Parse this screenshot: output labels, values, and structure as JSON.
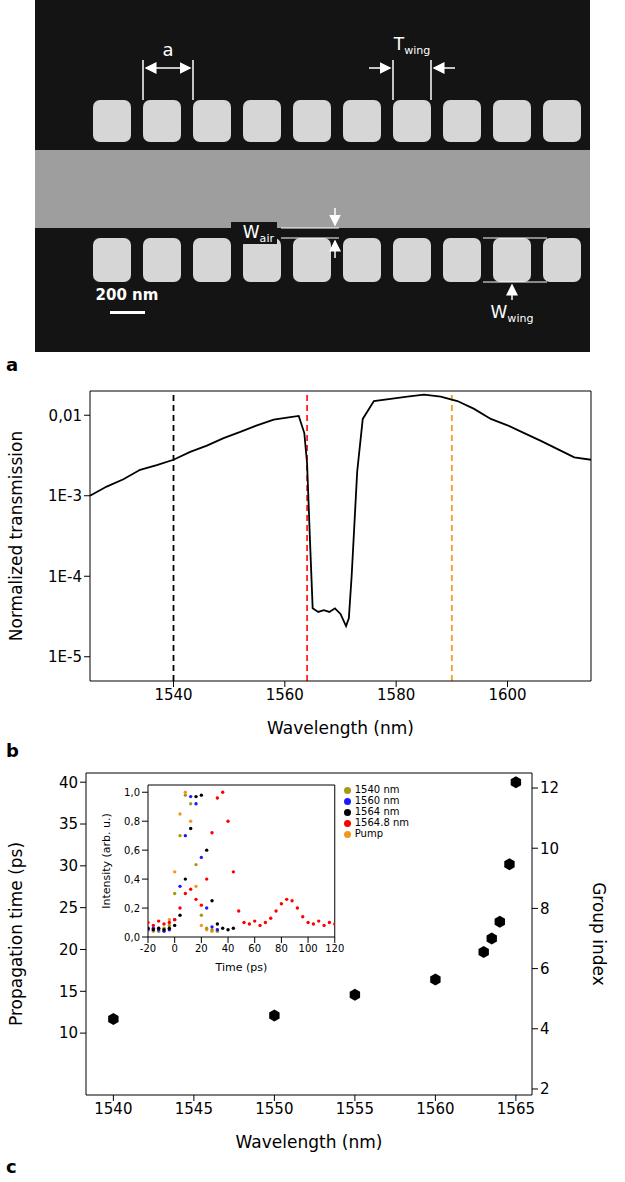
{
  "panel_a": {
    "label": "a",
    "dimensions": [
      {
        "symbol": "a"
      },
      {
        "symbol": "T",
        "subscript": "wing"
      },
      {
        "symbol": "W",
        "subscript": "air"
      },
      {
        "symbol": "W",
        "subscript": "wing"
      }
    ],
    "scale_bar": "200 nm"
  },
  "chart_data": [
    {
      "type": "line",
      "panel_label": "b",
      "x_label": "Wavelength (nm)",
      "y_label": "Normalized transmission",
      "log": "y",
      "grid": false,
      "color": "#000000",
      "x": [
        1525,
        1528,
        1531,
        1534,
        1537,
        1540,
        1543,
        1546,
        1549,
        1552,
        1555,
        1558,
        1561,
        1562.5,
        1563.5,
        1564,
        1564.5,
        1565,
        1566,
        1567,
        1568,
        1569,
        1570,
        1571,
        1571.5,
        1572,
        1573,
        1574,
        1576,
        1579,
        1582,
        1585,
        1588,
        1591,
        1594,
        1597,
        1600,
        1603,
        1606,
        1609,
        1612,
        1615
      ],
      "values": [
        0.001,
        0.0013,
        0.0016,
        0.0021,
        0.0024,
        0.0028,
        0.0035,
        0.0042,
        0.0052,
        0.0062,
        0.0075,
        0.0088,
        0.0095,
        0.0098,
        0.006,
        0.0025,
        0.0003,
        4e-05,
        3.6e-05,
        3.8e-05,
        3.6e-05,
        4e-05,
        3.4e-05,
        2.4e-05,
        3e-05,
        0.0001,
        0.002,
        0.009,
        0.015,
        0.016,
        0.017,
        0.018,
        0.017,
        0.015,
        0.012,
        0.009,
        0.0075,
        0.006,
        0.0048,
        0.0038,
        0.003,
        0.0028
      ],
      "xlim": [
        1525,
        1615
      ],
      "xticks": [
        1540,
        1560,
        1580,
        1600
      ],
      "ylim": [
        5e-06,
        0.02
      ],
      "yticks": [
        {
          "value": 1e-05,
          "label": "1E-5"
        },
        {
          "value": 0.0001,
          "label": "1E-4"
        },
        {
          "value": 0.001,
          "label": "1E-3"
        },
        {
          "value": 0.01,
          "label": "0,01"
        }
      ],
      "reference_lines": [
        {
          "x": 1540,
          "color": "#000000",
          "line_style": "dashed"
        },
        {
          "x": 1564,
          "color": "#ff2020",
          "line_style": "dashed"
        },
        {
          "x": 1590,
          "color": "#f0a020",
          "line_style": "dashed"
        }
      ]
    },
    {
      "type": "scatter",
      "panel_label": "c",
      "x_label": "Wavelength (nm)",
      "y_label": "Propagation time (ps)",
      "y2_label": "Group index",
      "grid": false,
      "color": "#000000",
      "marker": "hexagon",
      "x": [
        1540,
        1550,
        1555,
        1560,
        1563,
        1563.5,
        1564,
        1564.6,
        1565
      ],
      "values": [
        11.7,
        12.1,
        14.6,
        16.4,
        19.7,
        21.3,
        23.3,
        30.2,
        40
      ],
      "xlim": [
        1538.3,
        1566
      ],
      "xticks": [
        1540,
        1545,
        1550,
        1555,
        1560,
        1565
      ],
      "ylim": [
        2.6,
        41.1
      ],
      "yticks": [
        10,
        15,
        20,
        25,
        30,
        35,
        40
      ],
      "y2lim": [
        1.8,
        12.5
      ],
      "y2ticks": [
        2,
        4,
        6,
        8,
        10,
        12
      ],
      "inset": {
        "type": "scatter",
        "x_label": "Time (ps)",
        "y_label": "Intensity (arb. u.)",
        "marker": "o",
        "legend": "right",
        "grid": false,
        "xlim": [
          -20,
          120
        ],
        "xticks": [
          -20,
          0,
          20,
          40,
          60,
          80,
          100,
          120
        ],
        "ylim": [
          0,
          1.05
        ],
        "yticks": [
          {
            "value": 0,
            "label": "0,0"
          },
          {
            "value": 0.2,
            "label": "0,2"
          },
          {
            "value": 0.4,
            "label": "0,4"
          },
          {
            "value": 0.6,
            "label": "0,6"
          },
          {
            "value": 0.8,
            "label": "0,8"
          },
          {
            "value": 1,
            "label": "1,0"
          }
        ],
        "x": [
          -20,
          -16,
          -12,
          -8,
          -4,
          0,
          4,
          8,
          12,
          16,
          20,
          24,
          28,
          32,
          36,
          40,
          44,
          48,
          52,
          56,
          60,
          64,
          68,
          72,
          76,
          80,
          84,
          88,
          92,
          96,
          100,
          104,
          108,
          112,
          116,
          120
        ],
        "series": [
          {
            "name": "Pump",
            "color": "#f7941d",
            "values": [
              0.05,
              0.04,
              0.06,
              0.05,
              0.12,
              0.45,
              0.85,
              1.0,
              0.8,
              0.35,
              0.08,
              0.05,
              0.04,
              0.05,
              null,
              null,
              null,
              null,
              null,
              null,
              null,
              null,
              null,
              null,
              null,
              null,
              null,
              null,
              null,
              null,
              null,
              null,
              null,
              null,
              null,
              null
            ]
          },
          {
            "name": "1540 nm",
            "color": "#a89a10",
            "values": [
              0.06,
              0.05,
              0.04,
              0.06,
              0.08,
              0.3,
              0.7,
              0.98,
              0.92,
              0.5,
              0.15,
              0.06,
              0.05,
              0.04,
              null,
              null,
              null,
              null,
              null,
              null,
              null,
              null,
              null,
              null,
              null,
              null,
              null,
              null,
              null,
              null,
              null,
              null,
              null,
              null,
              null,
              null
            ]
          },
          {
            "name": "1560 nm",
            "color": "#1a1aff",
            "values": [
              0.05,
              0.06,
              0.05,
              0.04,
              0.05,
              0.12,
              0.35,
              0.7,
              0.97,
              0.92,
              0.55,
              0.2,
              0.07,
              0.05,
              null,
              null,
              null,
              null,
              null,
              null,
              null,
              null,
              null,
              null,
              null,
              null,
              null,
              null,
              null,
              null,
              null,
              null,
              null,
              null,
              null,
              null
            ]
          },
          {
            "name": "1564 nm",
            "color": "#000000",
            "values": [
              0.06,
              0.05,
              0.06,
              0.05,
              0.06,
              0.08,
              0.15,
              0.4,
              0.75,
              0.97,
              0.98,
              0.6,
              0.25,
              0.09,
              0.06,
              0.05,
              0.06,
              null,
              null,
              null,
              null,
              null,
              null,
              null,
              null,
              null,
              null,
              null,
              null,
              null,
              null,
              null,
              null,
              null,
              null,
              null
            ]
          },
          {
            "name": "1564.8 nm",
            "color": "#ff0000",
            "values": [
              0.1,
              0.08,
              0.11,
              0.09,
              0.1,
              0.12,
              0.2,
              0.3,
              0.33,
              0.26,
              0.22,
              0.4,
              0.72,
              0.96,
              1.0,
              0.8,
              0.45,
              0.18,
              0.1,
              0.09,
              0.11,
              0.08,
              0.1,
              0.13,
              0.18,
              0.23,
              0.26,
              0.25,
              0.2,
              0.14,
              0.1,
              0.09,
              0.11,
              0.08,
              0.1,
              0.09
            ]
          }
        ]
      }
    }
  ]
}
